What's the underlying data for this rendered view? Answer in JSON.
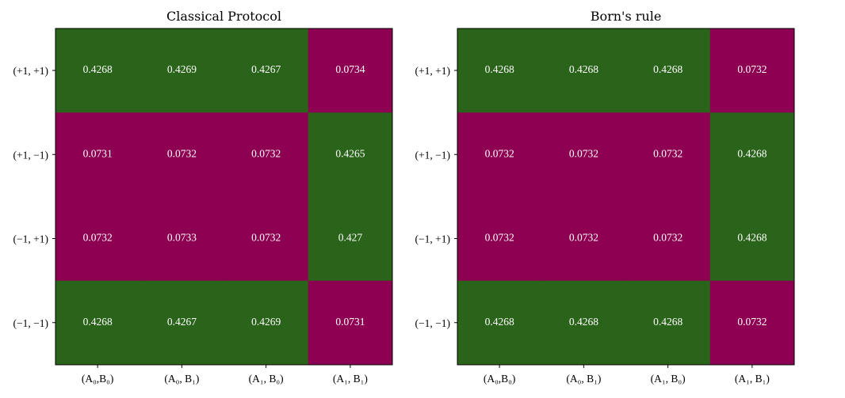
{
  "colors": {
    "high": "#2a631a",
    "low": "#8e0152",
    "cell_text": "#ffffff",
    "frame": "#000000"
  },
  "chart_data": [
    {
      "type": "heatmap",
      "title": "Classical Protocol",
      "x_categories": [
        "(A₀,B₀)",
        "(A₀, B₁)",
        "(A₁, B₀)",
        "(A₁, B₁)"
      ],
      "y_categories": [
        "(+1, +1)",
        "(+1, −1)",
        "(−1, +1)",
        "(−1, −1)"
      ],
      "values": [
        [
          "0.4268",
          "0.4269",
          "0.4267",
          "0.0734"
        ],
        [
          "0.0731",
          "0.0732",
          "0.0732",
          "0.4265"
        ],
        [
          "0.0732",
          "0.0733",
          "0.0732",
          "0.427"
        ],
        [
          "0.4268",
          "0.4267",
          "0.4269",
          "0.0731"
        ]
      ]
    },
    {
      "type": "heatmap",
      "title": "Born's rule",
      "x_categories": [
        "(A₀,B₀)",
        "(A₀, B₁)",
        "(A₁, B₀)",
        "(A₁, B₁)"
      ],
      "y_categories": [
        "(+1, +1)",
        "(+1, −1)",
        "(−1, +1)",
        "(−1, −1)"
      ],
      "values": [
        [
          "0.4268",
          "0.4268",
          "0.4268",
          "0.0732"
        ],
        [
          "0.0732",
          "0.0732",
          "0.0732",
          "0.4268"
        ],
        [
          "0.0732",
          "0.0732",
          "0.0732",
          "0.4268"
        ],
        [
          "0.4268",
          "0.4268",
          "0.4268",
          "0.0732"
        ]
      ]
    }
  ]
}
